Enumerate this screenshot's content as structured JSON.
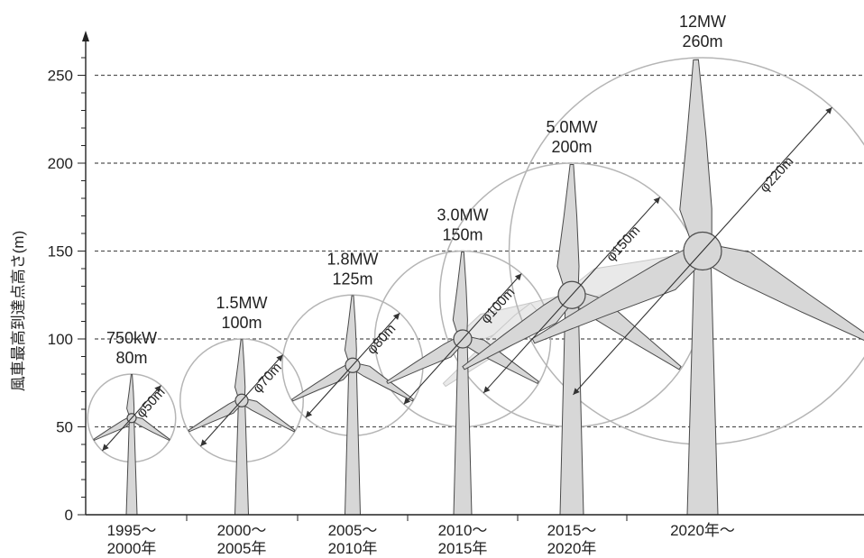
{
  "chart_data": {
    "type": "illustration",
    "title": "",
    "xlabel": "",
    "ylabel": "風車最高到達点高さ(m)",
    "ylim": [
      0,
      270
    ],
    "yticks": [
      0,
      50,
      100,
      150,
      200,
      250
    ],
    "y_major_gridlines_dashed": [
      50,
      100,
      150,
      200,
      250
    ],
    "turbines": [
      {
        "period": [
          "1995～",
          "2000年"
        ],
        "rating": "750kW",
        "height": "80m",
        "diameter": "φ50m",
        "tip_height_m": 80,
        "rotor_diameter_m": 50
      },
      {
        "period": [
          "2000～",
          "2005年"
        ],
        "rating": "1.5MW",
        "height": "100m",
        "diameter": "φ70m",
        "tip_height_m": 100,
        "rotor_diameter_m": 70
      },
      {
        "period": [
          "2005～",
          "2010年"
        ],
        "rating": "1.8MW",
        "height": "125m",
        "diameter": "φ80m",
        "tip_height_m": 125,
        "rotor_diameter_m": 80
      },
      {
        "period": [
          "2010～",
          "2015年"
        ],
        "rating": "3.0MW",
        "height": "150m",
        "diameter": "φ100m",
        "tip_height_m": 150,
        "rotor_diameter_m": 100
      },
      {
        "period": [
          "2015～",
          "2020年"
        ],
        "rating": "5.0MW",
        "height": "200m",
        "diameter": "φ150m",
        "tip_height_m": 200,
        "rotor_diameter_m": 150
      },
      {
        "period": [
          "2020年～",
          ""
        ],
        "rating": "12MW",
        "height": "260m",
        "diameter": "φ220m",
        "tip_height_m": 260,
        "rotor_diameter_m": 220
      }
    ]
  },
  "colors": {
    "blade_fill": "#d7d7d7",
    "blade_stroke": "#4a4a4a",
    "circle_stroke": "#b5b5b5",
    "ghost_fill": "#e9e9e9",
    "grid": "#555555",
    "text": "#222222"
  }
}
